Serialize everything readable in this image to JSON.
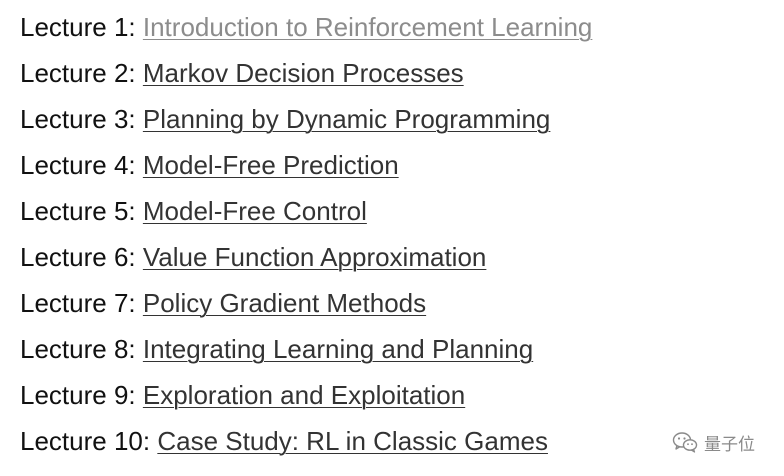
{
  "colors": {
    "visited_link": "#8c8c8c",
    "link": "#333333",
    "text": "#111111",
    "watermark": "#8a8a8a"
  },
  "lectures": [
    {
      "prefix": "Lecture 1:",
      "title": "Introduction to Reinforcement Learning",
      "visited": true
    },
    {
      "prefix": "Lecture 2:",
      "title": "Markov Decision Processes",
      "visited": false
    },
    {
      "prefix": "Lecture 3:",
      "title": "Planning by Dynamic Programming",
      "visited": false
    },
    {
      "prefix": "Lecture 4:",
      "title": "Model-Free Prediction",
      "visited": false
    },
    {
      "prefix": "Lecture 5:",
      "title": "Model-Free Control",
      "visited": false
    },
    {
      "prefix": "Lecture 6:",
      "title": "Value Function Approximation",
      "visited": false
    },
    {
      "prefix": "Lecture 7:",
      "title": "Policy Gradient Methods",
      "visited": false
    },
    {
      "prefix": "Lecture 8:",
      "title": "Integrating Learning and Planning",
      "visited": false
    },
    {
      "prefix": "Lecture 9:",
      "title": "Exploration and Exploitation",
      "visited": false
    },
    {
      "prefix": "Lecture 10:",
      "title": "Case Study: RL in Classic Games",
      "visited": false
    }
  ],
  "watermark": {
    "icon": "wechat-icon",
    "text": "量子位"
  }
}
